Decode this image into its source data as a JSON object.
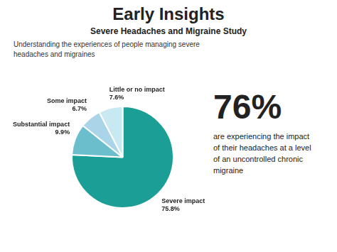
{
  "chart_data": {
    "type": "pie",
    "title": "Early Insights",
    "subtitle": "Severe Headaches and Migraine Study",
    "description": "Understanding the experiences of people managing severe\nheadaches and migraines",
    "categories": [
      "Severe impact",
      "Substantial impact",
      "Some impact",
      "Little or no impact"
    ],
    "values": [
      75.8,
      9.9,
      6.7,
      7.6
    ],
    "value_labels": [
      "75.8%",
      "9.9%",
      "6.7%",
      "7.6%"
    ],
    "colors": [
      "#1a9e96",
      "#6bbfcc",
      "#aad5e8",
      "#c8e8f2"
    ],
    "data_labels": true,
    "legend": false,
    "annotations": [
      {
        "text": "76%"
      },
      {
        "text": "are experiencing the impact\nof their headaches at a level\nof an uncontrolled chronic\nmigraine"
      }
    ]
  }
}
